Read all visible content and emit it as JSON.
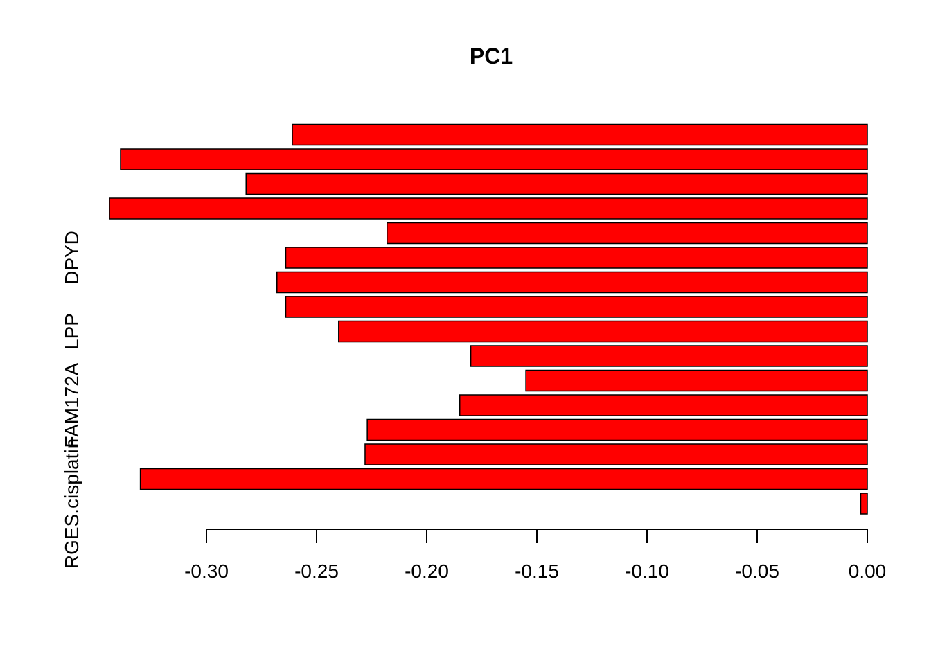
{
  "chart_data": {
    "type": "bar",
    "orientation": "horizontal",
    "title": "PC1",
    "xlabel": "",
    "ylabel": "",
    "xlim": [
      -0.345,
      0.0
    ],
    "xticks": [
      -0.3,
      -0.25,
      -0.2,
      -0.15,
      -0.1,
      -0.05,
      0.0
    ],
    "xtick_labels": [
      "-0.30",
      "-0.25",
      "-0.20",
      "-0.15",
      "-0.10",
      "-0.05",
      "0.00"
    ],
    "bar_color": "#ff0000",
    "bar_edge_color": "#000000",
    "grid": false,
    "categories_visible": [
      {
        "label": "RGES.cisplatin",
        "index": 0
      },
      {
        "label": "FAM172A",
        "index": 4
      },
      {
        "label": "LPP",
        "index": 7
      },
      {
        "label": "DPYD",
        "index": 10
      }
    ],
    "values_bottom_to_top": [
      -0.003,
      -0.33,
      -0.228,
      -0.227,
      -0.185,
      -0.155,
      -0.18,
      -0.24,
      -0.264,
      -0.268,
      -0.264,
      -0.218,
      -0.344,
      -0.282,
      -0.339,
      -0.261
    ]
  }
}
